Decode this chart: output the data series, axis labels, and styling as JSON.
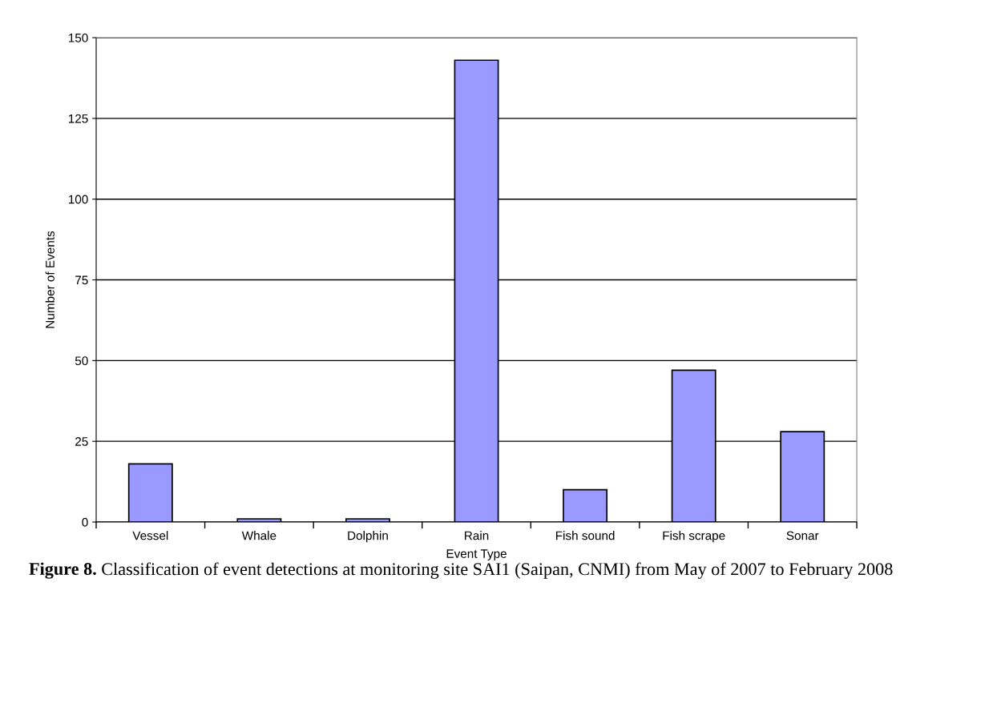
{
  "chart_data": {
    "type": "bar",
    "xlabel": "Event Type",
    "ylabel": "Number of Events",
    "categories": [
      "Vessel",
      "Whale",
      "Dolphin",
      "Rain",
      "Fish sound",
      "Fish scrape",
      "Sonar"
    ],
    "values": [
      18,
      1,
      1,
      143,
      10,
      47,
      28
    ],
    "color": "#9999ff",
    "ylim": [
      0,
      150
    ],
    "yticks": [
      0,
      25,
      50,
      75,
      100,
      125,
      150
    ],
    "grid": "y",
    "legend": false,
    "annotations": [
      "Figure 8.",
      "Classification of event detections at monitoring site SAI1 (Saipan, CNMI) from May of 2007 to February 2008"
    ]
  }
}
